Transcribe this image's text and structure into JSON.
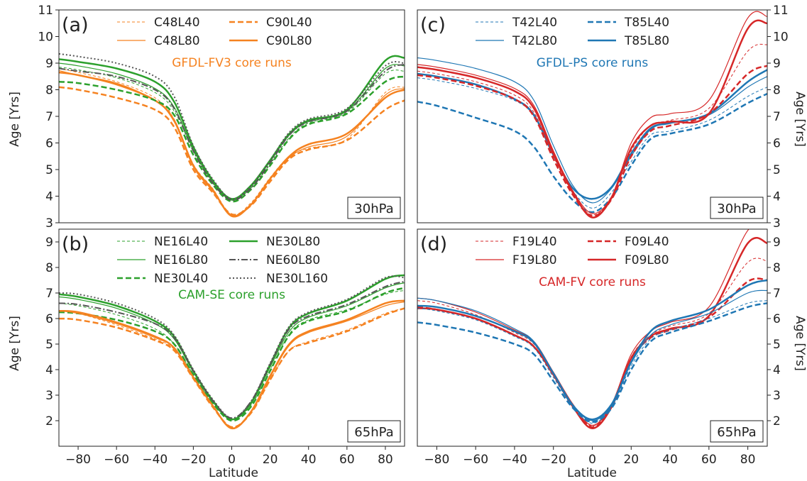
{
  "figure": {
    "xlabel": "Latitude",
    "ylabel_left": "Age [Yrs]",
    "ylabel_right": "Age [Yrs]"
  },
  "chart_data": [
    {
      "id": "a",
      "type": "line",
      "panel_label": "(a)",
      "pressure_label": "30hPa",
      "title": "GFDL-FV3 core runs",
      "title_color": "#f58220",
      "xlim": [
        -90,
        90
      ],
      "ylim": [
        3,
        11
      ],
      "xticks": [
        -80,
        -60,
        -40,
        -20,
        0,
        20,
        40,
        60,
        80
      ],
      "yticks": [
        3,
        4,
        5,
        6,
        7,
        8,
        9,
        10,
        11
      ],
      "ytick_side": "left",
      "legend_placement": "top",
      "x": [
        -90,
        -80,
        -60,
        -40,
        -30,
        -20,
        -10,
        0,
        10,
        20,
        30,
        40,
        60,
        80,
        90
      ],
      "series": [
        {
          "name": "C48L40",
          "legend": true,
          "color": "#f58220",
          "width": 1,
          "dash": "4,3",
          "values": [
            8.8,
            8.65,
            8.3,
            7.7,
            6.9,
            5.2,
            4.3,
            3.3,
            3.75,
            4.7,
            5.5,
            5.8,
            6.15,
            7.9,
            8.1
          ]
        },
        {
          "name": "C48L80",
          "legend": true,
          "color": "#f58220",
          "width": 1.2,
          "dash": "",
          "values": [
            8.72,
            8.55,
            8.25,
            7.6,
            6.8,
            5.1,
            4.2,
            3.28,
            3.7,
            4.65,
            5.45,
            5.85,
            6.25,
            7.8,
            8.05
          ]
        },
        {
          "name": "C90L40",
          "legend": true,
          "color": "#f58220",
          "width": 2.5,
          "dash": "8,4",
          "values": [
            8.1,
            8.0,
            7.7,
            7.25,
            6.6,
            5.0,
            4.15,
            3.32,
            3.65,
            4.55,
            5.4,
            5.75,
            6.1,
            7.25,
            7.6
          ]
        },
        {
          "name": "C90L80",
          "legend": true,
          "color": "#f58220",
          "width": 2.5,
          "dash": "",
          "values": [
            8.65,
            8.55,
            8.2,
            7.6,
            6.85,
            5.15,
            4.25,
            3.25,
            3.68,
            4.65,
            5.5,
            5.95,
            6.35,
            7.7,
            8.0
          ]
        },
        {
          "name": "",
          "legend": false,
          "color": "#2ca02c",
          "width": 1,
          "dash": "4,3",
          "values": [
            8.85,
            8.75,
            8.45,
            7.9,
            7.2,
            5.7,
            4.5,
            3.85,
            4.3,
            5.2,
            6.2,
            6.75,
            7.15,
            8.6,
            8.7
          ]
        },
        {
          "name": "",
          "legend": false,
          "color": "#2ca02c",
          "width": 1.2,
          "dash": "",
          "values": [
            9.0,
            8.9,
            8.6,
            8.05,
            7.35,
            5.75,
            4.55,
            3.85,
            4.35,
            5.3,
            6.3,
            6.8,
            7.2,
            8.8,
            8.9
          ]
        },
        {
          "name": "",
          "legend": false,
          "color": "#2ca02c",
          "width": 2.5,
          "dash": "8,4",
          "values": [
            8.3,
            8.25,
            8.0,
            7.6,
            7.05,
            5.55,
            4.45,
            3.8,
            4.25,
            5.15,
            6.15,
            6.7,
            7.1,
            8.3,
            8.5
          ]
        },
        {
          "name": "",
          "legend": false,
          "color": "#2ca02c",
          "width": 2.5,
          "dash": "",
          "values": [
            9.15,
            9.05,
            8.8,
            8.3,
            7.55,
            5.85,
            4.6,
            3.9,
            4.4,
            5.35,
            6.35,
            6.85,
            7.25,
            9.1,
            9.2
          ]
        },
        {
          "name": "",
          "legend": false,
          "color": "#555555",
          "width": 2,
          "dash": "9,3,2,3",
          "values": [
            8.8,
            8.7,
            8.5,
            8.0,
            7.3,
            5.7,
            4.5,
            3.85,
            4.3,
            5.25,
            6.3,
            6.8,
            7.2,
            8.7,
            8.95
          ]
        },
        {
          "name": "",
          "legend": false,
          "color": "#555555",
          "width": 2,
          "dash": "2,3",
          "values": [
            9.35,
            9.25,
            9.0,
            8.5,
            7.75,
            5.9,
            4.65,
            3.9,
            4.4,
            5.35,
            6.4,
            6.9,
            7.3,
            8.9,
            9.0
          ]
        }
      ]
    },
    {
      "id": "b",
      "type": "line",
      "panel_label": "(b)",
      "pressure_label": "65hPa",
      "title": "CAM-SE core runs",
      "title_color": "#2ca02c",
      "xlim": [
        -90,
        90
      ],
      "ylim": [
        1,
        9.5
      ],
      "xticks": [
        -80,
        -60,
        -40,
        -20,
        0,
        20,
        40,
        60,
        80
      ],
      "yticks": [
        2,
        3,
        4,
        5,
        6,
        7,
        8,
        9
      ],
      "ytick_side": "left",
      "legend_placement": "top",
      "x": [
        -90,
        -80,
        -60,
        -40,
        -30,
        -20,
        -10,
        0,
        10,
        20,
        30,
        40,
        60,
        80,
        90
      ],
      "series": [
        {
          "name": "NE16L40",
          "legend": true,
          "color": "#2ca02c",
          "width": 1,
          "dash": "4,3",
          "values": [
            6.6,
            6.5,
            6.15,
            5.6,
            5.0,
            3.8,
            2.7,
            2.05,
            2.6,
            4.0,
            5.4,
            5.95,
            6.35,
            6.95,
            7.1
          ]
        },
        {
          "name": "NE16L80",
          "legend": true,
          "color": "#2ca02c",
          "width": 1.2,
          "dash": "",
          "values": [
            6.85,
            6.75,
            6.4,
            5.8,
            5.2,
            3.9,
            2.75,
            2.05,
            2.65,
            4.1,
            5.5,
            6.05,
            6.5,
            7.2,
            7.4
          ]
        },
        {
          "name": "NE30L40",
          "legend": true,
          "color": "#2ca02c",
          "width": 2.5,
          "dash": "8,4",
          "values": [
            6.25,
            6.2,
            5.95,
            5.5,
            5.0,
            3.8,
            2.7,
            2.0,
            2.55,
            3.95,
            5.35,
            5.9,
            6.3,
            7.0,
            7.2
          ]
        },
        {
          "name": "NE30L80",
          "legend": true,
          "color": "#2ca02c",
          "width": 2.5,
          "dash": "",
          "values": [
            6.95,
            6.85,
            6.5,
            5.9,
            5.3,
            3.95,
            2.8,
            2.05,
            2.7,
            4.2,
            5.65,
            6.2,
            6.7,
            7.55,
            7.7
          ]
        },
        {
          "name": "NE60L80",
          "legend": true,
          "color": "#555555",
          "width": 2,
          "dash": "9,3,2,3",
          "values": [
            6.6,
            6.55,
            6.25,
            5.8,
            5.25,
            3.95,
            2.8,
            2.1,
            2.75,
            4.2,
            5.6,
            6.1,
            6.55,
            7.25,
            7.45
          ]
        },
        {
          "name": "NE30L160",
          "legend": true,
          "color": "#555555",
          "width": 2,
          "dash": "2,3",
          "values": [
            7.0,
            6.95,
            6.6,
            6.0,
            5.35,
            4.0,
            2.85,
            2.1,
            2.75,
            4.25,
            5.7,
            6.25,
            6.75,
            7.6,
            7.6
          ]
        },
        {
          "name": "",
          "legend": false,
          "color": "#f58220",
          "width": 1,
          "dash": "4,3",
          "values": [
            6.3,
            6.2,
            5.75,
            5.2,
            4.8,
            3.7,
            2.6,
            1.75,
            2.3,
            3.6,
            4.75,
            5.1,
            5.55,
            6.2,
            6.4
          ]
        },
        {
          "name": "",
          "legend": false,
          "color": "#f58220",
          "width": 1.2,
          "dash": "",
          "values": [
            6.3,
            6.2,
            5.8,
            5.25,
            4.85,
            3.7,
            2.6,
            1.72,
            2.35,
            3.7,
            4.95,
            5.45,
            5.9,
            6.5,
            6.65
          ]
        },
        {
          "name": "",
          "legend": false,
          "color": "#f58220",
          "width": 2.5,
          "dash": "8,4",
          "values": [
            6.0,
            5.95,
            5.65,
            5.15,
            4.75,
            3.65,
            2.55,
            1.75,
            2.3,
            3.6,
            4.75,
            5.05,
            5.5,
            6.15,
            6.4
          ]
        },
        {
          "name": "",
          "legend": false,
          "color": "#f58220",
          "width": 2.5,
          "dash": "",
          "values": [
            6.3,
            6.25,
            5.85,
            5.3,
            4.85,
            3.7,
            2.6,
            1.7,
            2.35,
            3.75,
            5.0,
            5.5,
            5.95,
            6.6,
            6.7
          ]
        }
      ]
    },
    {
      "id": "c",
      "type": "line",
      "panel_label": "(c)",
      "pressure_label": "30hPa",
      "title": "GFDL-PS core runs",
      "title_color": "#1f77b4",
      "xlim": [
        -90,
        90
      ],
      "ylim": [
        3,
        11
      ],
      "xticks": [
        -80,
        -60,
        -40,
        -20,
        0,
        20,
        40,
        60,
        80
      ],
      "yticks": [
        3,
        4,
        5,
        6,
        7,
        8,
        9,
        10,
        11
      ],
      "ytick_side": "right",
      "legend_placement": "top",
      "x": [
        -90,
        -80,
        -60,
        -40,
        -30,
        -20,
        -10,
        0,
        10,
        20,
        30,
        40,
        60,
        80,
        90
      ],
      "series": [
        {
          "name": "T42L40",
          "legend": true,
          "color": "#1f77b4",
          "width": 1,
          "dash": "4,3",
          "values": [
            8.45,
            8.35,
            8.05,
            7.6,
            7.0,
            5.5,
            4.2,
            3.55,
            4.15,
            5.3,
            6.3,
            6.45,
            6.85,
            7.75,
            8.1
          ]
        },
        {
          "name": "T42L80",
          "legend": true,
          "color": "#1f77b4",
          "width": 1.2,
          "dash": "",
          "values": [
            9.2,
            9.1,
            8.8,
            8.3,
            7.6,
            5.9,
            4.4,
            3.75,
            4.3,
            5.5,
            6.5,
            6.75,
            7.05,
            8.1,
            8.5
          ]
        },
        {
          "name": "T85L40",
          "legend": true,
          "color": "#1f77b4",
          "width": 2.5,
          "dash": "8,4",
          "values": [
            7.55,
            7.4,
            6.95,
            6.45,
            5.85,
            4.75,
            3.85,
            3.4,
            3.95,
            5.15,
            6.15,
            6.35,
            6.7,
            7.5,
            7.85
          ]
        },
        {
          "name": "T85L80",
          "legend": true,
          "color": "#1f77b4",
          "width": 2.5,
          "dash": "",
          "values": [
            8.6,
            8.5,
            8.2,
            7.65,
            7.05,
            5.55,
            4.3,
            3.9,
            4.35,
            5.6,
            6.55,
            6.75,
            7.1,
            8.3,
            8.75
          ]
        },
        {
          "name": "",
          "legend": false,
          "color": "#d62728",
          "width": 1,
          "dash": "4,3",
          "values": [
            8.7,
            8.6,
            8.3,
            7.8,
            7.15,
            5.5,
            4.1,
            3.3,
            3.95,
            5.7,
            6.65,
            6.85,
            7.3,
            9.45,
            9.7
          ]
        },
        {
          "name": "",
          "legend": false,
          "color": "#d62728",
          "width": 1.2,
          "dash": "",
          "values": [
            8.95,
            8.85,
            8.55,
            8.05,
            7.4,
            5.7,
            4.2,
            3.35,
            4.0,
            6.0,
            6.95,
            7.1,
            7.6,
            10.7,
            10.75
          ]
        },
        {
          "name": "",
          "legend": false,
          "color": "#d62728",
          "width": 2.5,
          "dash": "8,4",
          "values": [
            8.55,
            8.45,
            8.15,
            7.65,
            7.0,
            5.4,
            4.05,
            3.25,
            3.9,
            5.5,
            6.45,
            6.65,
            7.1,
            8.6,
            8.9
          ]
        },
        {
          "name": "",
          "legend": false,
          "color": "#d62728",
          "width": 2.5,
          "dash": "",
          "values": [
            8.85,
            8.75,
            8.45,
            7.95,
            7.3,
            5.6,
            4.15,
            3.2,
            3.95,
            5.8,
            6.65,
            6.8,
            7.1,
            10.3,
            10.5
          ]
        }
      ]
    },
    {
      "id": "d",
      "type": "line",
      "panel_label": "(d)",
      "pressure_label": "65hPa",
      "title": "CAM-FV core runs",
      "title_color": "#d62728",
      "xlim": [
        -90,
        90
      ],
      "ylim": [
        1,
        9.5
      ],
      "xticks": [
        -80,
        -60,
        -40,
        -20,
        0,
        20,
        40,
        60,
        80
      ],
      "yticks": [
        2,
        3,
        4,
        5,
        6,
        7,
        8,
        9
      ],
      "ytick_side": "right",
      "legend_placement": "top",
      "x": [
        -90,
        -80,
        -60,
        -40,
        -30,
        -20,
        -10,
        0,
        10,
        20,
        30,
        40,
        60,
        80,
        90
      ],
      "series": [
        {
          "name": "F19L40",
          "legend": true,
          "color": "#d62728",
          "width": 1,
          "dash": "4,3",
          "values": [
            6.7,
            6.6,
            6.15,
            5.45,
            5.0,
            3.85,
            2.6,
            1.8,
            2.6,
            4.5,
            5.35,
            5.7,
            6.2,
            8.2,
            8.25
          ]
        },
        {
          "name": "F19L80",
          "legend": true,
          "color": "#d62728",
          "width": 1.2,
          "dash": "",
          "values": [
            6.8,
            6.7,
            6.25,
            5.55,
            5.1,
            3.9,
            2.65,
            1.82,
            2.65,
            4.6,
            5.5,
            5.85,
            6.45,
            9.45,
            9.5
          ]
        },
        {
          "name": "F09L40",
          "legend": true,
          "color": "#d62728",
          "width": 2.5,
          "dash": "8,4",
          "values": [
            6.45,
            6.35,
            6.0,
            5.35,
            4.9,
            3.8,
            2.55,
            1.75,
            2.55,
            4.4,
            5.25,
            5.55,
            6.05,
            7.45,
            7.5
          ]
        },
        {
          "name": "F09L80",
          "legend": true,
          "color": "#d62728",
          "width": 2.5,
          "dash": "",
          "values": [
            6.4,
            6.35,
            6.0,
            5.35,
            4.9,
            3.8,
            2.55,
            1.7,
            2.55,
            4.45,
            5.3,
            5.6,
            6.1,
            8.95,
            8.95
          ]
        },
        {
          "name": "",
          "legend": false,
          "color": "#1f77b4",
          "width": 1,
          "dash": "4,3",
          "values": [
            6.4,
            6.3,
            5.95,
            5.3,
            4.85,
            3.7,
            2.55,
            1.9,
            2.55,
            4.15,
            5.2,
            5.55,
            6.0,
            6.6,
            6.7
          ]
        },
        {
          "name": "",
          "legend": false,
          "color": "#1f77b4",
          "width": 1.2,
          "dash": "",
          "values": [
            6.8,
            6.7,
            6.3,
            5.6,
            5.1,
            3.85,
            2.6,
            2.0,
            2.6,
            4.25,
            5.35,
            5.75,
            6.2,
            7.0,
            7.1
          ]
        },
        {
          "name": "",
          "legend": false,
          "color": "#1f77b4",
          "width": 2.5,
          "dash": "8,4",
          "values": [
            5.85,
            5.75,
            5.45,
            5.0,
            4.6,
            3.55,
            2.5,
            1.95,
            2.5,
            4.0,
            5.1,
            5.45,
            5.9,
            6.45,
            6.6
          ]
        },
        {
          "name": "",
          "legend": false,
          "color": "#1f77b4",
          "width": 2.5,
          "dash": "",
          "values": [
            6.5,
            6.45,
            6.1,
            5.5,
            5.05,
            3.85,
            2.6,
            2.05,
            2.65,
            4.3,
            5.5,
            5.9,
            6.35,
            7.3,
            7.5
          ]
        }
      ]
    }
  ]
}
